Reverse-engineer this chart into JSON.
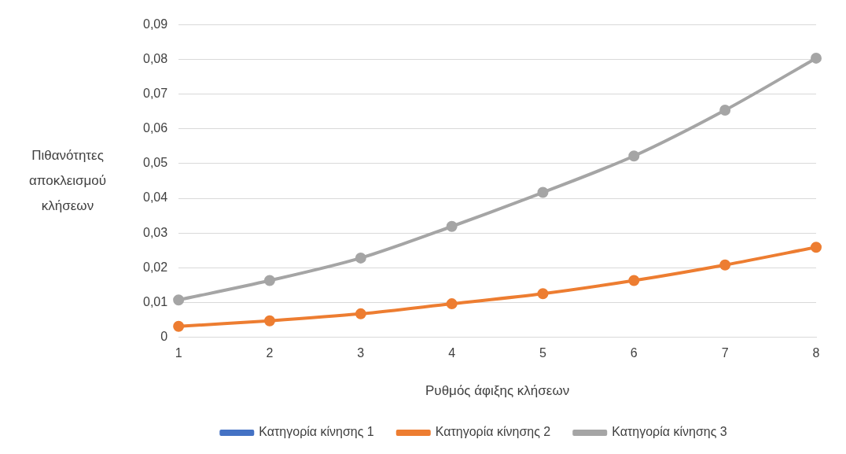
{
  "chart_data": {
    "type": "line",
    "xlabel": "Ρυθμός άφιξης κλήσεων",
    "ylabel": "Πιθανότητες αποκλεισμού κλήσεων",
    "categories": [
      "1",
      "2",
      "3",
      "4",
      "5",
      "6",
      "7",
      "8"
    ],
    "series": [
      {
        "name": "Κατηγορία κίνησης 1",
        "color": "#4472c4",
        "values": [
          null,
          null,
          null,
          null,
          null,
          null,
          null,
          null
        ]
      },
      {
        "name": "Κατηγορία κίνησης 2",
        "color": "#ed7d31",
        "values": [
          0.0031,
          0.0047,
          0.0067,
          0.0096,
          0.0125,
          0.0163,
          0.0208,
          0.0259
        ]
      },
      {
        "name": "Κατηγορία κίνησης 3",
        "color": "#a5a5a5",
        "values": [
          0.0107,
          0.0163,
          0.0228,
          0.0319,
          0.0417,
          0.0522,
          0.0654,
          0.0804
        ]
      }
    ],
    "ylim": [
      0,
      0.09
    ],
    "yticks": [
      0,
      {
        "value": 0.01,
        "label": "0,01"
      },
      {
        "value": 0.02,
        "label": "0,02"
      },
      {
        "value": 0.03,
        "label": "0,03"
      },
      {
        "value": 0.04,
        "label": "0,04"
      },
      {
        "value": 0.05,
        "label": "0,05"
      },
      {
        "value": 0.06,
        "label": "0,06"
      },
      {
        "value": 0.07,
        "label": "0,07"
      },
      {
        "value": 0.08,
        "label": "0,08"
      },
      {
        "value": 0.09,
        "label": "0,09"
      }
    ],
    "grid": "y",
    "legend": "bottom",
    "marker": "circle",
    "line_style": "solid"
  }
}
